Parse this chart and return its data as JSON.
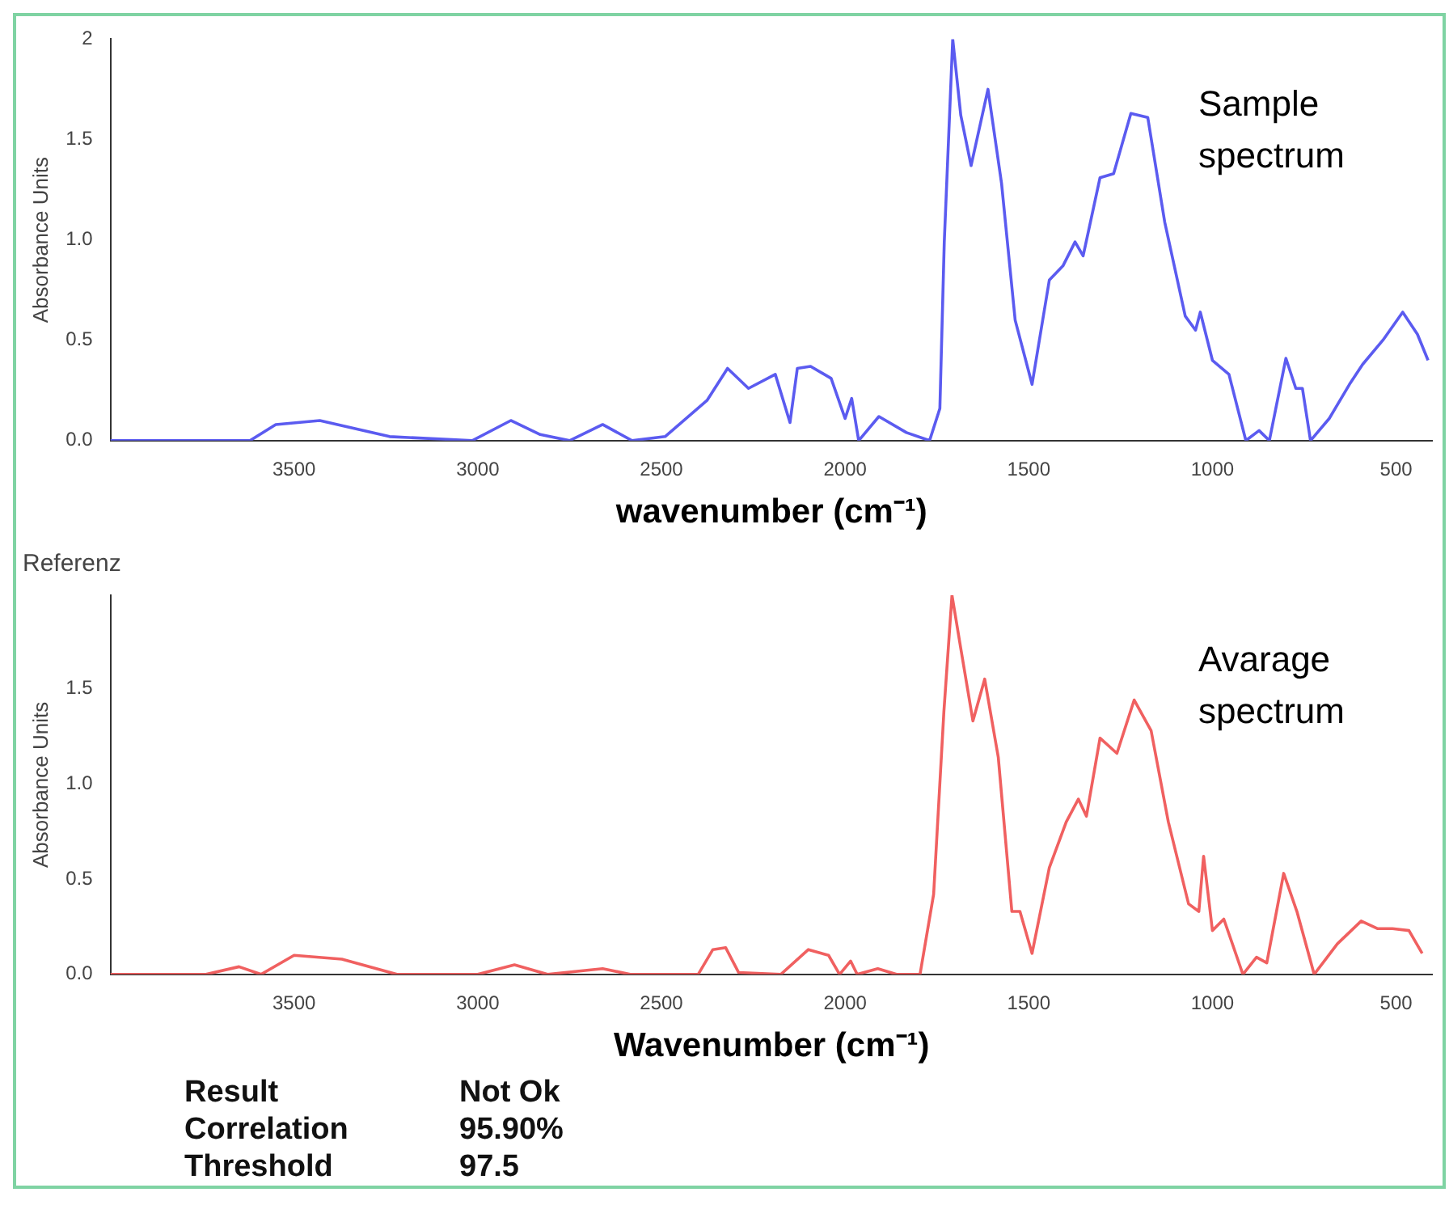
{
  "chart_data": [
    {
      "type": "line",
      "xlabel": "wavenumber (cm⁻¹)",
      "ylabel": "Absorbance Units",
      "xlim": [
        4000,
        400
      ],
      "ylim": [
        0,
        2
      ],
      "xticks": [
        3500,
        3000,
        2500,
        2000,
        1500,
        1000,
        500
      ],
      "yticks": [
        {
          "value": 0,
          "label": "0.0"
        },
        {
          "value": 0.5,
          "label": "0.5"
        },
        {
          "value": 1,
          "label": "1.0"
        },
        {
          "value": 1.5,
          "label": "1.5"
        },
        2
      ],
      "grid": false,
      "legend": false,
      "marker": "none",
      "line_style": "solid",
      "series": [
        {
          "name": "Sample spectrum",
          "color": "#5b5bf0",
          "x": [
            4000,
            3770,
            3620,
            3550,
            3430,
            3240,
            3015,
            2910,
            2830,
            2750,
            2660,
            2580,
            2490,
            2376,
            2320,
            2263,
            2190,
            2150,
            2130,
            2094,
            2038,
            2000,
            1982,
            1963,
            1908,
            1833,
            1770,
            1742,
            1730,
            1707,
            1685,
            1657,
            1611,
            1574,
            1537,
            1491,
            1444,
            1407,
            1374,
            1352,
            1306,
            1269,
            1222,
            1176,
            1130,
            1074,
            1046,
            1033,
            1000,
            955,
            909,
            873,
            845,
            800,
            773,
            755,
            733,
            682,
            627,
            591,
            536,
            482,
            442,
            413
          ],
          "values": [
            0,
            0,
            0,
            0.08,
            0.1,
            0.02,
            0,
            0.1,
            0.03,
            0,
            0.08,
            0,
            0.02,
            0.2,
            0.36,
            0.26,
            0.33,
            0.09,
            0.36,
            0.37,
            0.31,
            0.11,
            0.21,
            0,
            0.12,
            0.04,
            0,
            0.16,
            0.99,
            2,
            1.62,
            1.37,
            1.75,
            1.28,
            0.6,
            0.28,
            0.8,
            0.87,
            0.99,
            0.92,
            1.31,
            1.33,
            1.63,
            1.61,
            1.09,
            0.62,
            0.55,
            0.64,
            0.4,
            0.33,
            0,
            0.05,
            0,
            0.41,
            0.26,
            0.26,
            0,
            0.11,
            0.28,
            0.38,
            0.5,
            0.64,
            0.53,
            0.4
          ]
        }
      ]
    },
    {
      "type": "line",
      "title": "Referenz",
      "xlabel": "Wavenumber (cm⁻¹)",
      "ylabel": "Absorbance Units",
      "xlim": [
        4000,
        400
      ],
      "ylim": [
        0,
        1.99
      ],
      "xticks": [
        3500,
        3000,
        2500,
        2000,
        1500,
        1000,
        500
      ],
      "yticks": [
        {
          "value": 0,
          "label": "0.0"
        },
        {
          "value": 0.5,
          "label": "0.5"
        },
        {
          "value": 1,
          "label": "1.0"
        },
        {
          "value": 1.5,
          "label": "1.5"
        }
      ],
      "grid": false,
      "legend": false,
      "marker": "none",
      "line_style": "solid",
      "series": [
        {
          "name": "Avarage spectrum",
          "color": "#f06060",
          "x": [
            4000,
            3740,
            3650,
            3590,
            3500,
            3370,
            3220,
            3000,
            2900,
            2810,
            2660,
            2585,
            2400,
            2360,
            2325,
            2290,
            2175,
            2100,
            2045,
            2015,
            1985,
            1967,
            1911,
            1860,
            1796,
            1759,
            1731,
            1709,
            1685,
            1652,
            1620,
            1583,
            1546,
            1524,
            1491,
            1444,
            1398,
            1365,
            1343,
            1306,
            1260,
            1213,
            1167,
            1120,
            1065,
            1037,
            1024,
            1000,
            969,
            917,
            880,
            852,
            806,
            770,
            723,
            660,
            595,
            550,
            510,
            465,
            429
          ],
          "values": [
            0,
            0,
            0.04,
            0,
            0.1,
            0.08,
            0,
            0,
            0.05,
            0,
            0.03,
            0,
            0,
            0.13,
            0.14,
            0.01,
            0,
            0.13,
            0.1,
            0,
            0.07,
            0,
            0.03,
            0,
            0,
            0.42,
            1.38,
            1.99,
            1.71,
            1.33,
            1.55,
            1.14,
            0.33,
            0.33,
            0.11,
            0.56,
            0.8,
            0.92,
            0.83,
            1.24,
            1.16,
            1.44,
            1.28,
            0.8,
            0.37,
            0.33,
            0.62,
            0.23,
            0.29,
            0,
            0.09,
            0.06,
            0.53,
            0.33,
            0,
            0.16,
            0.28,
            0.24,
            0.24,
            0.23,
            0.11
          ]
        }
      ],
      "annotations": [
        "Result",
        "Not Ok",
        "Correlation",
        "95.90%",
        "Threshold",
        "97.5"
      ]
    }
  ]
}
